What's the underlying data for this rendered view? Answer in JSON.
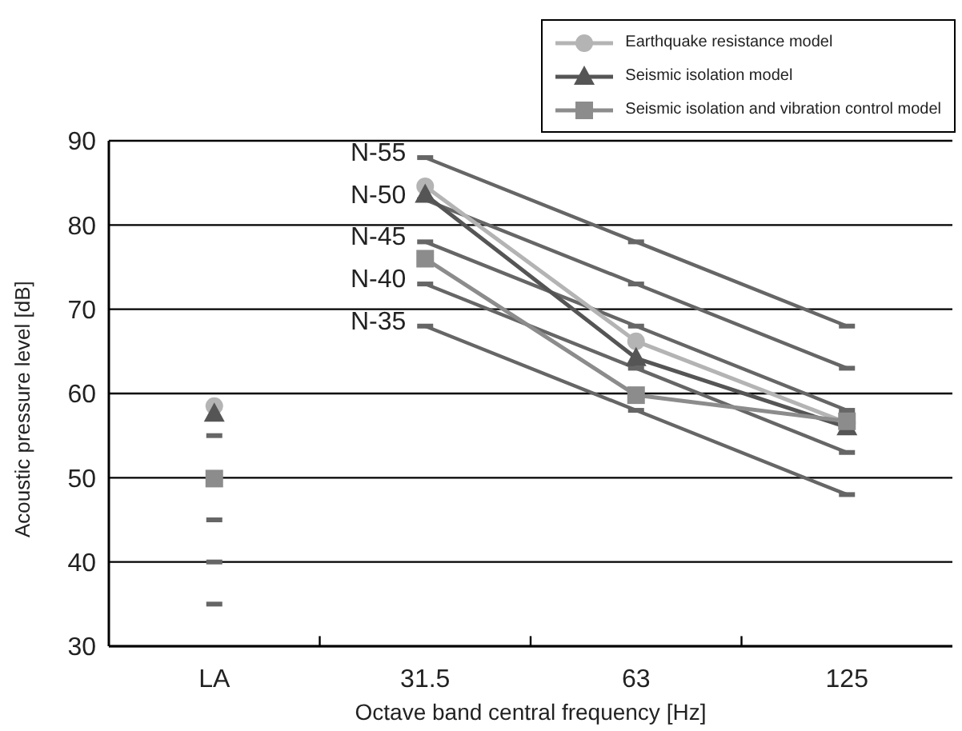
{
  "chart_data": {
    "type": "line",
    "xlabel": "Octave band central frequency [Hz]",
    "ylabel": "Acoustic pressure level [dB]",
    "categories": [
      "LA",
      "31.5",
      "63",
      "125"
    ],
    "ylim": [
      30,
      90
    ],
    "yticks": [
      30,
      40,
      50,
      60,
      70,
      80,
      90
    ],
    "grid": "y",
    "legend": "top right",
    "line_style": "solid",
    "series": [
      {
        "name": "N-55",
        "color": "#666666",
        "marker": "square",
        "values": [
          null,
          88,
          78,
          68
        ]
      },
      {
        "name": "N-50",
        "color": "#666666",
        "marker": "square",
        "values": [
          null,
          83,
          73,
          63
        ]
      },
      {
        "name": "N-45",
        "color": "#666666",
        "marker": "square",
        "values": [
          null,
          78,
          68,
          58
        ]
      },
      {
        "name": "N-40",
        "color": "#666666",
        "marker": "square",
        "values": [
          null,
          73,
          63,
          53
        ]
      },
      {
        "name": "N-35",
        "color": "#666666",
        "marker": "square",
        "values": [
          null,
          68,
          58,
          48
        ]
      },
      {
        "name": "Earthquake resistance model",
        "color": "#b4b4b4",
        "marker": "circle",
        "values": [
          null,
          84.6,
          66.2,
          56.5
        ]
      },
      {
        "name": "Seismic isolation model",
        "color": "#555555",
        "marker": "triangle",
        "values": [
          null,
          83.6,
          64.2,
          56
        ]
      },
      {
        "name": "Seismic isolation and vibration control model",
        "color": "#8c8c8c",
        "marker": "square",
        "values": [
          null,
          76,
          59.8,
          56.7
        ]
      },
      {
        "type": "scatter",
        "color": "#666666",
        "marker": "square",
        "x": [
          "LA",
          "LA",
          "LA",
          "LA"
        ],
        "values": [
          55,
          45,
          40,
          35
        ]
      },
      {
        "type": "scatter",
        "color": "#b4b4b4",
        "marker": "circle",
        "x": [
          "LA"
        ],
        "values": [
          58.5
        ]
      },
      {
        "type": "scatter",
        "color": "#555555",
        "marker": "triangle",
        "x": [
          "LA"
        ],
        "values": [
          57.6
        ]
      },
      {
        "type": "scatter",
        "color": "#8c8c8c",
        "marker": "square",
        "x": [
          "LA"
        ],
        "values": [
          49.9
        ]
      }
    ]
  }
}
